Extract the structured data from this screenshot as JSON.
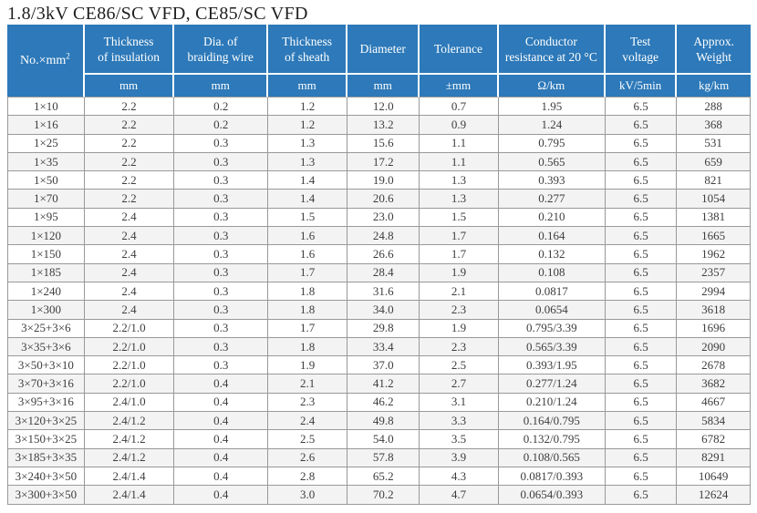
{
  "title": "1.8/3kV  CE86/SC VFD, CE85/SC VFD",
  "colors": {
    "header_bg": "#2d79b9",
    "header_text": "#ffffff",
    "row_bg": "#ffffff",
    "row_alt_bg": "#f3f3f3",
    "grid_line": "#999999",
    "body_text": "#3d3d3d",
    "title_text": "#1f1f1f"
  },
  "table": {
    "corner": {
      "base": "No.×mm",
      "sup": "2"
    },
    "columns": [
      {
        "label": "Thickness\nof insulation",
        "unit": "mm"
      },
      {
        "label": "Dia. of\nbraiding wire",
        "unit": "mm"
      },
      {
        "label": "Thickness\nof sheath",
        "unit": "mm"
      },
      {
        "label": "Diameter",
        "unit": "mm"
      },
      {
        "label": "Tolerance",
        "unit": "±mm"
      },
      {
        "label": "Conductor\nresistance at 20 °C",
        "unit": "Ω/km"
      },
      {
        "label": "Test\nvoltage",
        "unit": "kV/5min"
      },
      {
        "label": "Approx.\nWeight",
        "unit": "kg/km"
      }
    ],
    "rows": [
      [
        "1×10",
        "2.2",
        "0.2",
        "1.2",
        "12.0",
        "0.7",
        "1.95",
        "6.5",
        "288"
      ],
      [
        "1×16",
        "2.2",
        "0.2",
        "1.2",
        "13.2",
        "0.9",
        "1.24",
        "6.5",
        "368"
      ],
      [
        "1×25",
        "2.2",
        "0.3",
        "1.3",
        "15.6",
        "1.1",
        "0.795",
        "6.5",
        "531"
      ],
      [
        "1×35",
        "2.2",
        "0.3",
        "1.3",
        "17.2",
        "1.1",
        "0.565",
        "6.5",
        "659"
      ],
      [
        "1×50",
        "2.2",
        "0.3",
        "1.4",
        "19.0",
        "1.3",
        "0.393",
        "6.5",
        "821"
      ],
      [
        "1×70",
        "2.2",
        "0.3",
        "1.4",
        "20.6",
        "1.3",
        "0.277",
        "6.5",
        "1054"
      ],
      [
        "1×95",
        "2.4",
        "0.3",
        "1.5",
        "23.0",
        "1.5",
        "0.210",
        "6.5",
        "1381"
      ],
      [
        "1×120",
        "2.4",
        "0.3",
        "1.6",
        "24.8",
        "1.7",
        "0.164",
        "6.5",
        "1665"
      ],
      [
        "1×150",
        "2.4",
        "0.3",
        "1.6",
        "26.6",
        "1.7",
        "0.132",
        "6.5",
        "1962"
      ],
      [
        "1×185",
        "2.4",
        "0.3",
        "1.7",
        "28.4",
        "1.9",
        "0.108",
        "6.5",
        "2357"
      ],
      [
        "1×240",
        "2.4",
        "0.3",
        "1.8",
        "31.6",
        "2.1",
        "0.0817",
        "6.5",
        "2994"
      ],
      [
        "1×300",
        "2.4",
        "0.3",
        "1.8",
        "34.0",
        "2.3",
        "0.0654",
        "6.5",
        "3618"
      ],
      [
        "3×25+3×6",
        "2.2/1.0",
        "0.3",
        "1.7",
        "29.8",
        "1.9",
        "0.795/3.39",
        "6.5",
        "1696"
      ],
      [
        "3×35+3×6",
        "2.2/1.0",
        "0.3",
        "1.8",
        "33.4",
        "2.3",
        "0.565/3.39",
        "6.5",
        "2090"
      ],
      [
        "3×50+3×10",
        "2.2/1.0",
        "0.3",
        "1.9",
        "37.0",
        "2.5",
        "0.393/1.95",
        "6.5",
        "2678"
      ],
      [
        "3×70+3×16",
        "2.2/1.0",
        "0.4",
        "2.1",
        "41.2",
        "2.7",
        "0.277/1.24",
        "6.5",
        "3682"
      ],
      [
        "3×95+3×16",
        "2.4/1.0",
        "0.4",
        "2.3",
        "46.2",
        "3.1",
        "0.210/1.24",
        "6.5",
        "4667"
      ],
      [
        "3×120+3×25",
        "2.4/1.2",
        "0.4",
        "2.4",
        "49.8",
        "3.3",
        "0.164/0.795",
        "6.5",
        "5834"
      ],
      [
        "3×150+3×25",
        "2.4/1.2",
        "0.4",
        "2.5",
        "54.0",
        "3.5",
        "0.132/0.795",
        "6.5",
        "6782"
      ],
      [
        "3×185+3×35",
        "2.4/1.2",
        "0.4",
        "2.6",
        "57.8",
        "3.9",
        "0.108/0.565",
        "6.5",
        "8291"
      ],
      [
        "3×240+3×50",
        "2.4/1.4",
        "0.4",
        "2.8",
        "65.2",
        "4.3",
        "0.0817/0.393",
        "6.5",
        "10649"
      ],
      [
        "3×300+3×50",
        "2.4/1.4",
        "0.4",
        "3.0",
        "70.2",
        "4.7",
        "0.0654/0.393",
        "6.5",
        "12624"
      ]
    ]
  }
}
